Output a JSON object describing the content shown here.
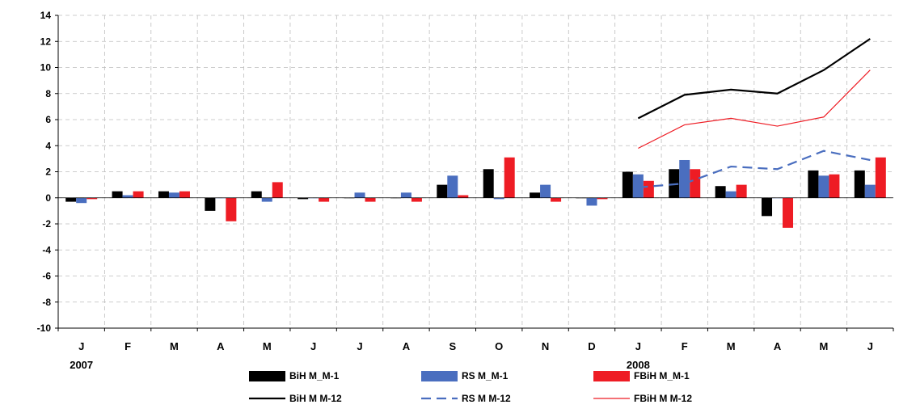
{
  "chart_data": {
    "type": "bar",
    "title": "",
    "xlabel": "",
    "ylabel": "",
    "ylim": [
      -10,
      14
    ],
    "yticks": [
      14,
      12,
      10,
      8,
      6,
      4,
      2,
      0,
      -2,
      -4,
      -6,
      -8,
      -10
    ],
    "ytick_labels": [
      "14",
      "12",
      "10",
      "8",
      "6",
      "4",
      "2",
      "0",
      "-2",
      "-4",
      "-6",
      "-8",
      "-10"
    ],
    "grid": true,
    "legend_position": "bottom",
    "categories": [
      "J",
      "F",
      "M",
      "A",
      "M",
      "J",
      "J",
      "A",
      "S",
      "O",
      "N",
      "D",
      "J",
      "F",
      "M",
      "A",
      "M",
      "J"
    ],
    "year_labels": [
      {
        "index": 0,
        "label": "2007"
      },
      {
        "index": 12,
        "label": "2008"
      }
    ],
    "series": [
      {
        "name": "BiH  M_M-1",
        "kind": "bar",
        "color": "#000000",
        "values": [
          -0.3,
          0.5,
          0.5,
          -1.0,
          0.5,
          -0.1,
          0.0,
          0.0,
          1.0,
          2.2,
          0.4,
          0.0,
          2.0,
          2.2,
          0.9,
          -1.4,
          2.1,
          2.1
        ]
      },
      {
        "name": "RS M_M-1",
        "kind": "bar",
        "color": "#4a6ebf",
        "values": [
          -0.4,
          0.2,
          0.4,
          0.0,
          -0.3,
          0.0,
          0.4,
          0.4,
          1.7,
          -0.1,
          1.0,
          -0.6,
          1.8,
          2.9,
          0.5,
          0.0,
          1.7,
          1.0
        ]
      },
      {
        "name": "FBiH M_M-1",
        "kind": "bar",
        "color": "#ee1c24",
        "values": [
          -0.1,
          0.5,
          0.5,
          -1.8,
          1.2,
          -0.3,
          -0.3,
          -0.3,
          0.2,
          3.1,
          -0.3,
          -0.1,
          1.3,
          2.2,
          1.0,
          -2.3,
          1.8,
          3.1
        ]
      },
      {
        "name": "BiH  M  M-12",
        "kind": "line",
        "color": "#000000",
        "style": "solid-thick",
        "values": [
          null,
          null,
          null,
          null,
          null,
          null,
          null,
          null,
          null,
          null,
          null,
          null,
          6.1,
          7.9,
          8.3,
          8.0,
          9.8,
          12.2
        ]
      },
      {
        "name": "RS M  M-12",
        "kind": "line",
        "color": "#4a6ebf",
        "style": "dashed",
        "values": [
          null,
          null,
          null,
          null,
          null,
          null,
          null,
          null,
          null,
          null,
          null,
          null,
          0.8,
          1.1,
          2.4,
          2.2,
          3.6,
          2.9
        ]
      },
      {
        "name": "FBiH M  M-12",
        "kind": "line",
        "color": "#ee1c24",
        "style": "solid-thin",
        "values": [
          null,
          null,
          null,
          null,
          null,
          null,
          null,
          null,
          null,
          null,
          null,
          null,
          3.8,
          5.6,
          6.1,
          5.5,
          6.2,
          9.8
        ]
      }
    ]
  }
}
